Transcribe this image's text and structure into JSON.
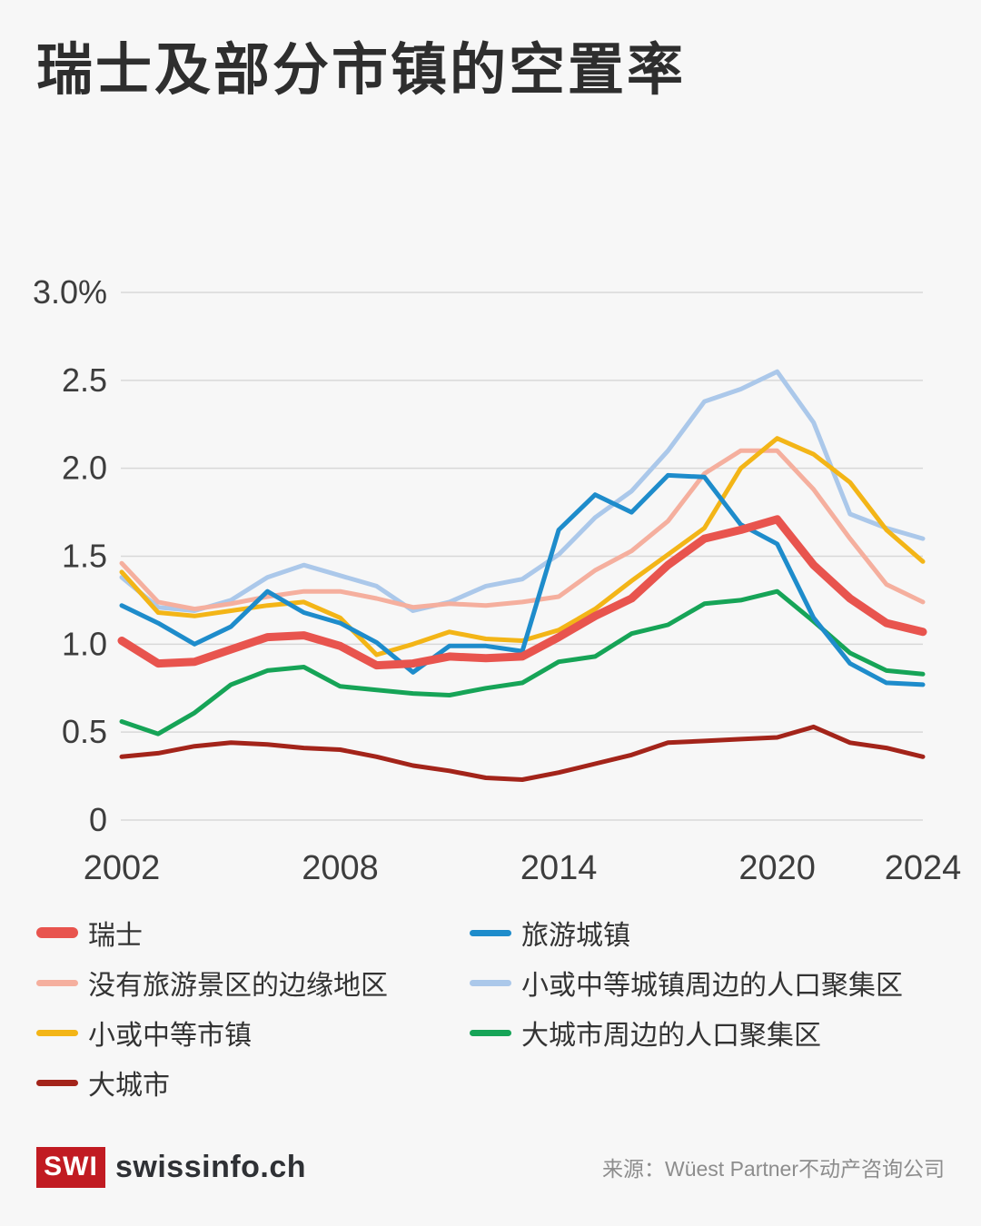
{
  "title": "瑞士及部分市镇的空置率",
  "chart_data": {
    "type": "line",
    "x": [
      2002,
      2003,
      2004,
      2005,
      2006,
      2007,
      2008,
      2009,
      2010,
      2011,
      2012,
      2013,
      2014,
      2015,
      2016,
      2017,
      2018,
      2019,
      2020,
      2021,
      2022,
      2023,
      2024
    ],
    "x_tick_labels": [
      "2002",
      "2008",
      "2014",
      "2020",
      "2024"
    ],
    "x_tick_years": [
      2002,
      2008,
      2014,
      2020,
      2024
    ],
    "y_ticks": [
      {
        "label": "3.0%",
        "value": 3.0
      },
      {
        "label": "2.5",
        "value": 2.5
      },
      {
        "label": "2.0",
        "value": 2.0
      },
      {
        "label": "1.5",
        "value": 1.5
      },
      {
        "label": "1.0",
        "value": 1.0
      },
      {
        "label": "0.5",
        "value": 0.5
      },
      {
        "label": "0",
        "value": 0
      }
    ],
    "ylim": [
      0,
      3.0
    ],
    "unit": "%",
    "grid": true,
    "legend_position": "bottom",
    "series": [
      {
        "name": "瑞士",
        "slug": "switzerland",
        "color": "#e8544e",
        "width": 9,
        "values": [
          1.02,
          0.89,
          0.9,
          0.97,
          1.04,
          1.05,
          0.99,
          0.88,
          0.89,
          0.93,
          0.92,
          0.93,
          1.04,
          1.16,
          1.26,
          1.45,
          1.6,
          1.65,
          1.71,
          1.45,
          1.26,
          1.12,
          1.07
        ]
      },
      {
        "name": "旅游城镇",
        "slug": "tourist-towns",
        "color": "#1e8ccb",
        "width": 5,
        "values": [
          1.22,
          1.12,
          1.0,
          1.1,
          1.3,
          1.18,
          1.12,
          1.01,
          0.84,
          0.99,
          0.99,
          0.96,
          1.65,
          1.85,
          1.75,
          1.96,
          1.95,
          1.68,
          1.57,
          1.15,
          0.89,
          0.78,
          0.77
        ]
      },
      {
        "name": "没有旅游景区的边缘地区",
        "slug": "peripheral-regions-without-tourism",
        "color": "#f5af9e",
        "width": 5,
        "values": [
          1.46,
          1.24,
          1.2,
          1.23,
          1.27,
          1.3,
          1.3,
          1.26,
          1.21,
          1.23,
          1.22,
          1.24,
          1.27,
          1.42,
          1.53,
          1.7,
          1.97,
          2.1,
          2.1,
          1.88,
          1.6,
          1.34,
          1.24
        ]
      },
      {
        "name": "小或中等城镇周边的人口聚集区",
        "slug": "agglomerations-small-medium-towns",
        "color": "#abc8ea",
        "width": 5,
        "values": [
          1.38,
          1.21,
          1.19,
          1.25,
          1.38,
          1.45,
          1.39,
          1.33,
          1.19,
          1.24,
          1.33,
          1.37,
          1.51,
          1.72,
          1.87,
          2.1,
          2.38,
          2.45,
          2.55,
          2.26,
          1.74,
          1.66,
          1.6
        ]
      },
      {
        "name": "小或中等市镇",
        "slug": "small-medium-towns",
        "color": "#f3b517",
        "width": 5,
        "values": [
          1.41,
          1.18,
          1.16,
          1.19,
          1.22,
          1.24,
          1.15,
          0.94,
          1.0,
          1.07,
          1.03,
          1.02,
          1.08,
          1.2,
          1.36,
          1.51,
          1.66,
          2.0,
          2.17,
          2.08,
          1.92,
          1.65,
          1.47
        ]
      },
      {
        "name": "大城市周边的人口聚集区",
        "slug": "agglomerations-large-cities",
        "color": "#16a457",
        "width": 5,
        "values": [
          0.56,
          0.49,
          0.61,
          0.77,
          0.85,
          0.87,
          0.76,
          0.74,
          0.72,
          0.71,
          0.75,
          0.78,
          0.9,
          0.93,
          1.06,
          1.11,
          1.23,
          1.25,
          1.3,
          1.13,
          0.95,
          0.85,
          0.83
        ]
      },
      {
        "name": "大城市",
        "slug": "large-cities",
        "color": "#a3241a",
        "width": 5,
        "values": [
          0.36,
          0.38,
          0.42,
          0.44,
          0.43,
          0.41,
          0.4,
          0.36,
          0.31,
          0.28,
          0.24,
          0.23,
          0.27,
          0.32,
          0.37,
          0.44,
          0.45,
          0.46,
          0.47,
          0.53,
          0.44,
          0.41,
          0.36
        ]
      }
    ],
    "draw_order": [
      3,
      2,
      4,
      5,
      6,
      1,
      0
    ]
  },
  "footer": {
    "logo_text": "SWI",
    "logo_color": "#c11b22",
    "brand": "swissinfo.ch",
    "source": "来源：Wüest Partner不动产咨询公司"
  }
}
